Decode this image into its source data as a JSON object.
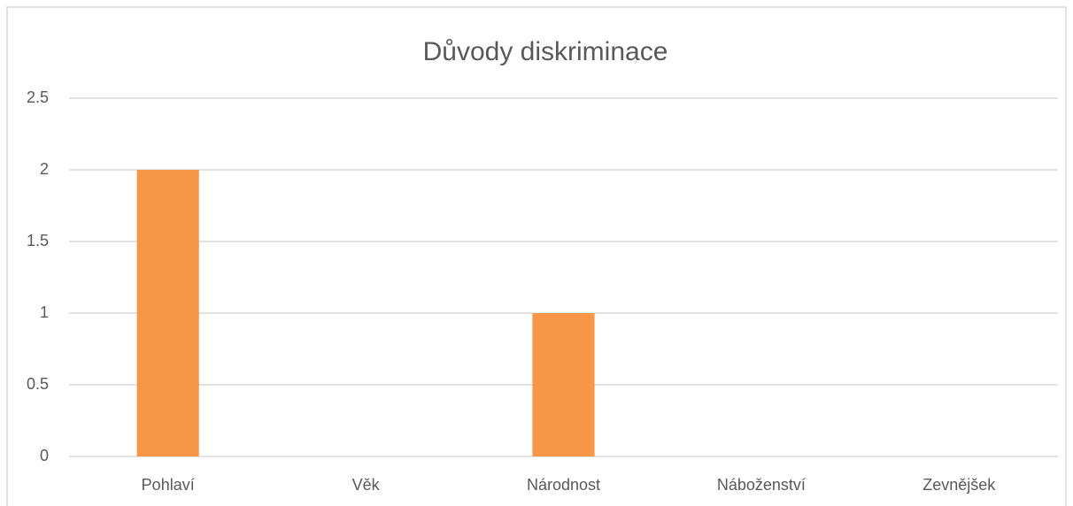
{
  "chart_data": {
    "type": "bar",
    "title": "Důvody diskriminace",
    "categories": [
      "Pohlaví",
      "Věk",
      "Národnost",
      "Náboženství",
      "Zevnějšek"
    ],
    "values": [
      2,
      0,
      1,
      0,
      0
    ],
    "color": "#f79646",
    "ylim": [
      0,
      2.5
    ],
    "yticks": [
      0,
      0.5,
      1,
      1.5,
      2,
      2.5
    ],
    "grid": true
  }
}
